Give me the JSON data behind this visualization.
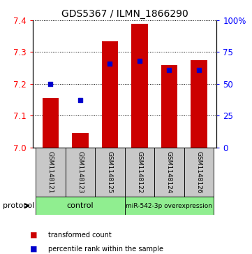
{
  "title": "GDS5367 / ILMN_1866290",
  "samples": [
    "GSM1148121",
    "GSM1148123",
    "GSM1148125",
    "GSM1148122",
    "GSM1148124",
    "GSM1148126"
  ],
  "red_values": [
    7.155,
    7.045,
    7.335,
    7.39,
    7.26,
    7.275
  ],
  "blue_percentiles": [
    50,
    37,
    66,
    68,
    61,
    61
  ],
  "baseline": 7.0,
  "ylim_left": [
    7.0,
    7.4
  ],
  "ylim_right": [
    0,
    100
  ],
  "yticks_left": [
    7.0,
    7.1,
    7.2,
    7.3,
    7.4
  ],
  "yticks_right": [
    0,
    25,
    50,
    75,
    100
  ],
  "ytick_labels_right": [
    "0",
    "25",
    "50",
    "75",
    "100%"
  ],
  "control_label": "control",
  "mirna_label": "miR-542-3p overexpression",
  "protocol_label": "protocol",
  "legend_red": "transformed count",
  "legend_blue": "percentile rank within the sample",
  "bar_color": "#cc0000",
  "blue_color": "#0000cc",
  "green_bg": "#90ee90",
  "sample_bg": "#c8c8c8",
  "bar_width": 0.55,
  "title_fontsize": 10,
  "axis_fontsize": 8.5,
  "sample_fontsize": 6.5,
  "proto_fontsize": 8,
  "legend_fontsize": 7
}
